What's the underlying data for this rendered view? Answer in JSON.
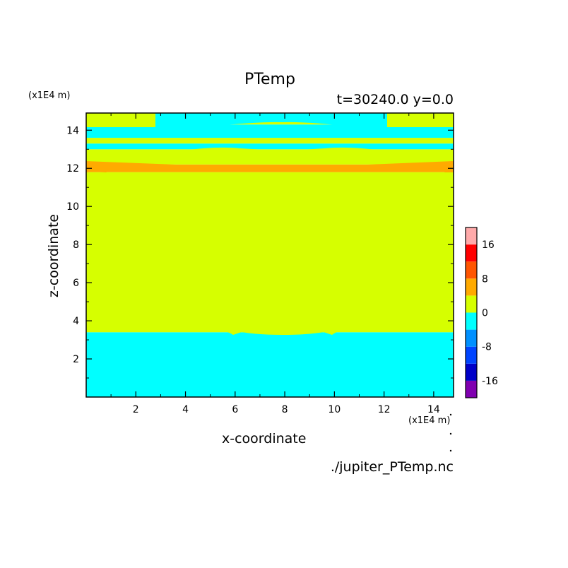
{
  "chart_data": {
    "type": "heatmap",
    "title": "PTemp",
    "subtitle": "t=30240.0 y=0.0",
    "xlabel": "x-coordinate",
    "ylabel": "z-coordinate",
    "x_scale_label": "(x1E4 m)",
    "y_scale_label": "(x1E4 m)",
    "xlim": [
      0,
      14.8
    ],
    "ylim": [
      0,
      14.9
    ],
    "x_ticks": [
      "2",
      "4",
      "6",
      "8",
      "10",
      "12",
      "14"
    ],
    "y_ticks": [
      "2",
      "4",
      "6",
      "8",
      "10",
      "12",
      "14"
    ],
    "colorbar": {
      "range": [
        -20,
        20
      ],
      "step": 4,
      "tick_values": [
        16,
        8,
        0,
        -8,
        -16
      ],
      "tick_labels": [
        "16",
        "8",
        "0",
        "-8",
        "-16"
      ],
      "colors": [
        "#8000b0",
        "#0000c8",
        "#0044ff",
        "#0090ff",
        "#00ffff",
        "#d6ff00",
        "#ffaa00",
        "#ff5500",
        "#ff0000",
        "#ffaaaa"
      ]
    },
    "bands": [
      {
        "level": "-4 to 0",
        "color": "#00ffff",
        "z_range": [
          0,
          3.4
        ]
      },
      {
        "level": "0 to 4",
        "color": "#d6ff00",
        "z_range": [
          3.4,
          11.8
        ]
      },
      {
        "level": "4 to 8",
        "color": "#ffaa00",
        "z_range": [
          11.8,
          12.2
        ]
      },
      {
        "level": "0 to 4",
        "color": "#d6ff00",
        "z_range": [
          12.2,
          13.0
        ]
      },
      {
        "level": "-4 to 0",
        "color": "#00ffff",
        "z_range": [
          13.0,
          13.3
        ]
      },
      {
        "level": "0 to 4",
        "color": "#d6ff00",
        "z_range": [
          13.3,
          13.6
        ]
      },
      {
        "level": "-4 to 0",
        "color": "#00ffff",
        "z_range": [
          13.6,
          14.3
        ]
      },
      {
        "level": "0 to 4",
        "color": "#d6ff00",
        "z_range": [
          14.3,
          14.9
        ]
      }
    ]
  },
  "source_file": "./jupiter_PTemp.nc"
}
